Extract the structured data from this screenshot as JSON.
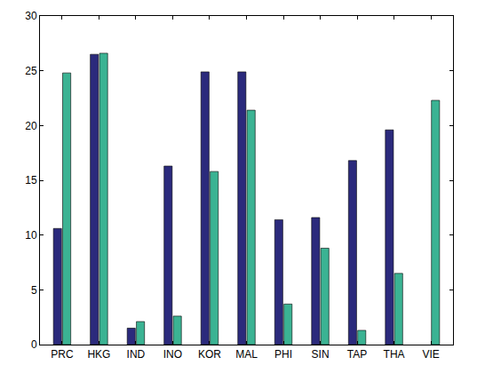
{
  "chart_data": {
    "type": "bar",
    "categories": [
      "PRC",
      "HKG",
      "IND",
      "INO",
      "KOR",
      "MAL",
      "PHI",
      "SIN",
      "TAP",
      "THA",
      "VIE"
    ],
    "series": [
      {
        "color": "#2b2a7c",
        "values": [
          10.6,
          26.5,
          1.5,
          16.3,
          24.9,
          24.9,
          11.4,
          11.6,
          16.8,
          19.6,
          null
        ]
      },
      {
        "color": "#3bb393",
        "values": [
          24.8,
          26.6,
          2.1,
          2.6,
          15.8,
          21.4,
          3.7,
          8.8,
          1.3,
          6.5,
          22.3
        ]
      }
    ],
    "ylim": [
      0,
      30
    ],
    "yticks": [
      0,
      5,
      10,
      15,
      20,
      25,
      30
    ],
    "grid": false
  }
}
